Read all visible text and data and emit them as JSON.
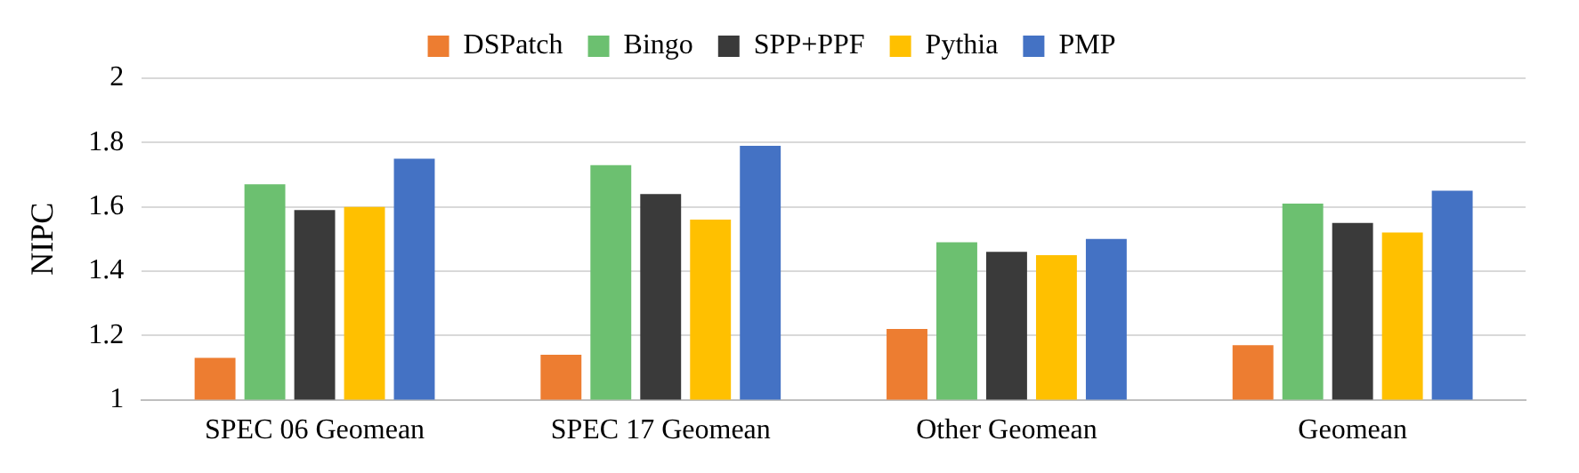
{
  "chart_data": {
    "type": "bar",
    "ylabel": "NIPC",
    "categories": [
      "SPEC 06 Geomean",
      "SPEC 17 Geomean",
      "Other Geomean",
      "Geomean"
    ],
    "series": [
      {
        "name": "DSPatch",
        "color": "#ed7d31",
        "values": [
          1.13,
          1.14,
          1.22,
          1.17
        ]
      },
      {
        "name": "Bingo",
        "color": "#6cc070",
        "values": [
          1.67,
          1.73,
          1.49,
          1.61
        ]
      },
      {
        "name": "SPP+PPF",
        "color": "#3a3a3a",
        "values": [
          1.59,
          1.64,
          1.46,
          1.55
        ]
      },
      {
        "name": "Pythia",
        "color": "#ffc000",
        "values": [
          1.6,
          1.56,
          1.45,
          1.52
        ]
      },
      {
        "name": "PMP",
        "color": "#4472c4",
        "values": [
          1.75,
          1.79,
          1.5,
          1.65
        ]
      }
    ],
    "ylim": [
      1,
      2
    ],
    "yticks": [
      1,
      1.2,
      1.4,
      1.6,
      1.8,
      2
    ],
    "grid": "y",
    "legend": "top"
  }
}
